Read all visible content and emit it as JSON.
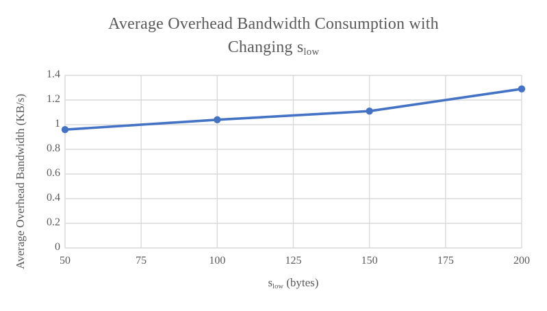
{
  "title": {
    "line1": "Average Overhead Bandwidth Consumption with",
    "line2_main": "Changing s",
    "line2_sub": "low"
  },
  "axes": {
    "y_title": "Average Overhead Bandwidth (KB/s)",
    "x_title_prefix": "s",
    "x_title_sub": "low",
    "x_title_suffix": " (bytes)"
  },
  "colors": {
    "line": "#4472C4",
    "marker": "#4472C4",
    "grid": "#D9D9D9",
    "text": "#595959"
  },
  "chart_data": {
    "type": "line",
    "title": "Average Overhead Bandwidth Consumption with Changing s_low",
    "xlabel": "s_low (bytes)",
    "ylabel": "Average Overhead Bandwidth (KB/s)",
    "x": [
      50,
      100,
      150,
      200
    ],
    "values": [
      0.96,
      1.04,
      1.11,
      1.29
    ],
    "xlim": [
      50,
      200
    ],
    "ylim": [
      0,
      1.4
    ],
    "xticks": [
      50,
      75,
      100,
      125,
      150,
      175,
      200
    ],
    "yticks": [
      0,
      0.2,
      0.4,
      0.6,
      0.8,
      1,
      1.2,
      1.4
    ],
    "grid": true,
    "legend": false,
    "marker": "circle"
  }
}
